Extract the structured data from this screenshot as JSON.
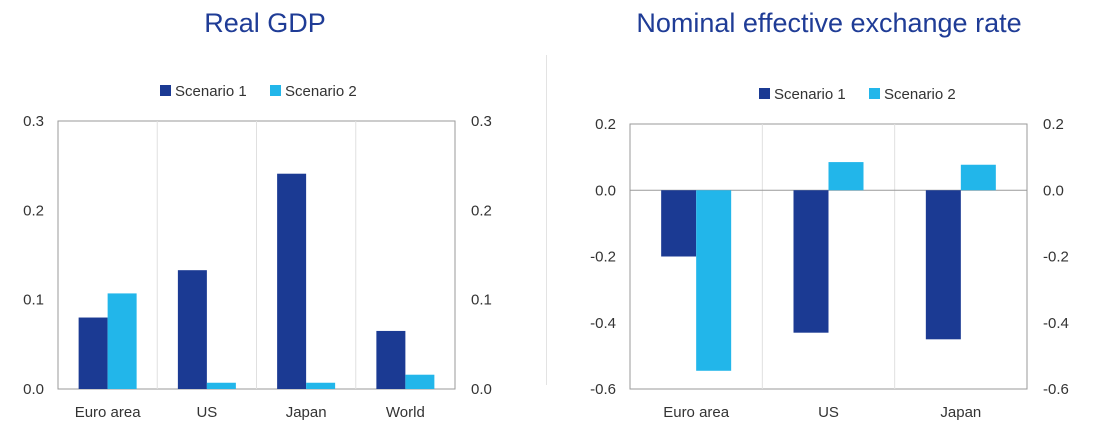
{
  "colors": {
    "scenario1": "#1b3a93",
    "scenario2": "#22b6ea",
    "title": "#1f3c96"
  },
  "chart_data": [
    {
      "type": "bar",
      "title": "Real GDP",
      "categories": [
        "Euro area",
        "US",
        "Japan",
        "World"
      ],
      "series": [
        {
          "name": "Scenario 1",
          "values": [
            0.08,
            0.133,
            0.241,
            0.065
          ]
        },
        {
          "name": "Scenario 2",
          "values": [
            0.107,
            0.007,
            0.007,
            0.016
          ]
        }
      ],
      "yticks": [
        "0.3",
        "0.2",
        "0.1",
        "0.0"
      ],
      "ylim": [
        0,
        0.3
      ],
      "legend": "top-center",
      "secondary_axis": true,
      "grid": "vertical"
    },
    {
      "type": "bar",
      "title": "Nominal effective exchange rate",
      "categories": [
        "Euro area",
        "US",
        "Japan"
      ],
      "series": [
        {
          "name": "Scenario 1",
          "values": [
            -0.2,
            -0.43,
            -0.45
          ]
        },
        {
          "name": "Scenario 2",
          "values": [
            -0.545,
            0.085,
            0.077
          ]
        }
      ],
      "yticks": [
        "0.2",
        "0.0",
        "-0.2",
        "-0.4",
        "-0.6"
      ],
      "ylim": [
        -0.6,
        0.2
      ],
      "legend": "top-center",
      "secondary_axis": true,
      "grid": "vertical"
    }
  ]
}
